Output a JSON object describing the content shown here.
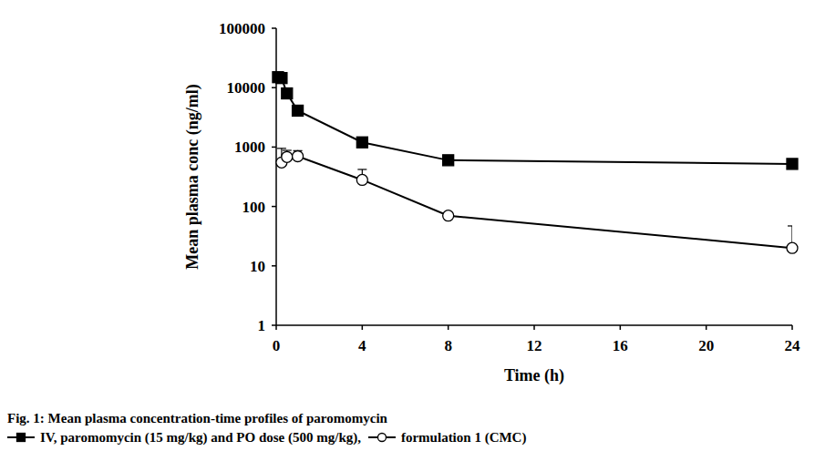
{
  "chart_data": {
    "type": "line",
    "title": "Fig. 1: Mean plasma concentration-time profiles of paromomycin",
    "x_label": "Time (h)",
    "y_label": "Mean plasma conc (ng/ml)",
    "xlim": [
      0,
      24
    ],
    "xticks": [
      0,
      4,
      8,
      12,
      16,
      20,
      24
    ],
    "ylim": [
      1,
      100000
    ],
    "yticks": [
      1,
      10,
      100,
      1000,
      10000,
      100000
    ],
    "log": "y",
    "grid": false,
    "legend": "bottom",
    "series": [
      {
        "name": "IV, paromomycin (15 mg/kg) and PO dose (500 mg/kg),",
        "color": "#000000",
        "marker": "filled-square",
        "line_style": "solid",
        "x": [
          0.083,
          0.25,
          0.5,
          1,
          4,
          8,
          24
        ],
        "values": [
          15000,
          14500,
          8000,
          4100,
          1200,
          600,
          520
        ]
      },
      {
        "name": "formulation 1 (CMC)",
        "color": "#000000",
        "marker": "open-circle",
        "line_style": "solid",
        "x": [
          0.25,
          0.5,
          1,
          4,
          8,
          24
        ],
        "values": [
          550,
          680,
          700,
          280,
          70,
          20
        ],
        "errors": [
          400,
          200,
          170,
          140,
          5,
          27
        ]
      }
    ]
  }
}
